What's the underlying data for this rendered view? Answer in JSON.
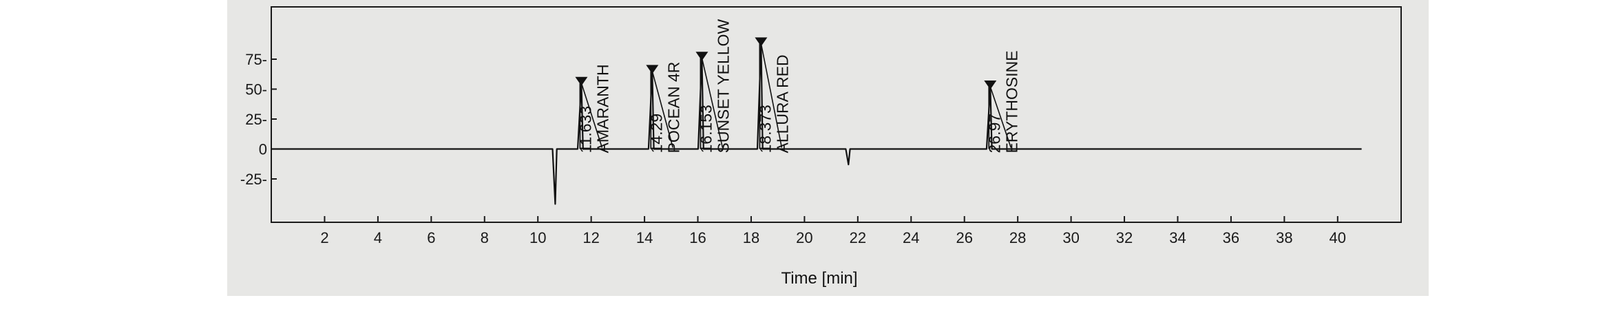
{
  "chart_data": {
    "type": "line",
    "title": "",
    "xlabel": "Time [min]",
    "ylabel": "",
    "xlim": [
      0,
      41
    ],
    "ylim": [
      -45,
      92
    ],
    "x_ticks": [
      2,
      4,
      6,
      8,
      10,
      12,
      14,
      16,
      18,
      20,
      22,
      24,
      26,
      28,
      30,
      32,
      34,
      36,
      38,
      40
    ],
    "x_tick_labels": [
      "2",
      "4",
      "6",
      "8",
      "10",
      "12",
      "14",
      "16",
      "18",
      "20",
      "22",
      "24",
      "26",
      "28",
      "30",
      "32",
      "34",
      "36",
      "38",
      "40"
    ],
    "y_ticks": [
      75,
      50,
      25,
      0,
      -25
    ],
    "y_tick_labels": [
      "75-",
      "50-",
      "25-",
      "0",
      "-25-"
    ],
    "grid": false,
    "baseline": {
      "x_start": 0,
      "x_end": 40.9,
      "value": 0
    },
    "negative_peaks": [
      {
        "time": 10.65,
        "value": -46
      },
      {
        "time": 21.65,
        "value": -13
      }
    ],
    "peaks": [
      {
        "time": 11.633,
        "value": 55,
        "time_label": "11.633",
        "compound": "AMARANTH"
      },
      {
        "time": 14.29,
        "value": 65,
        "time_label": "14.29",
        "compound": "POCEAN 4R"
      },
      {
        "time": 16.153,
        "value": 76,
        "time_label": "16.153",
        "compound": "SUNSET YELLOW"
      },
      {
        "time": 18.373,
        "value": 88,
        "time_label": "18.373",
        "compound": "ALLURA RED"
      },
      {
        "time": 26.97,
        "value": 52,
        "time_label": "26.97",
        "compound": "ERYTHOSINE"
      }
    ],
    "colors": {
      "trace": "#111111",
      "background": "#e7e7e5"
    }
  }
}
